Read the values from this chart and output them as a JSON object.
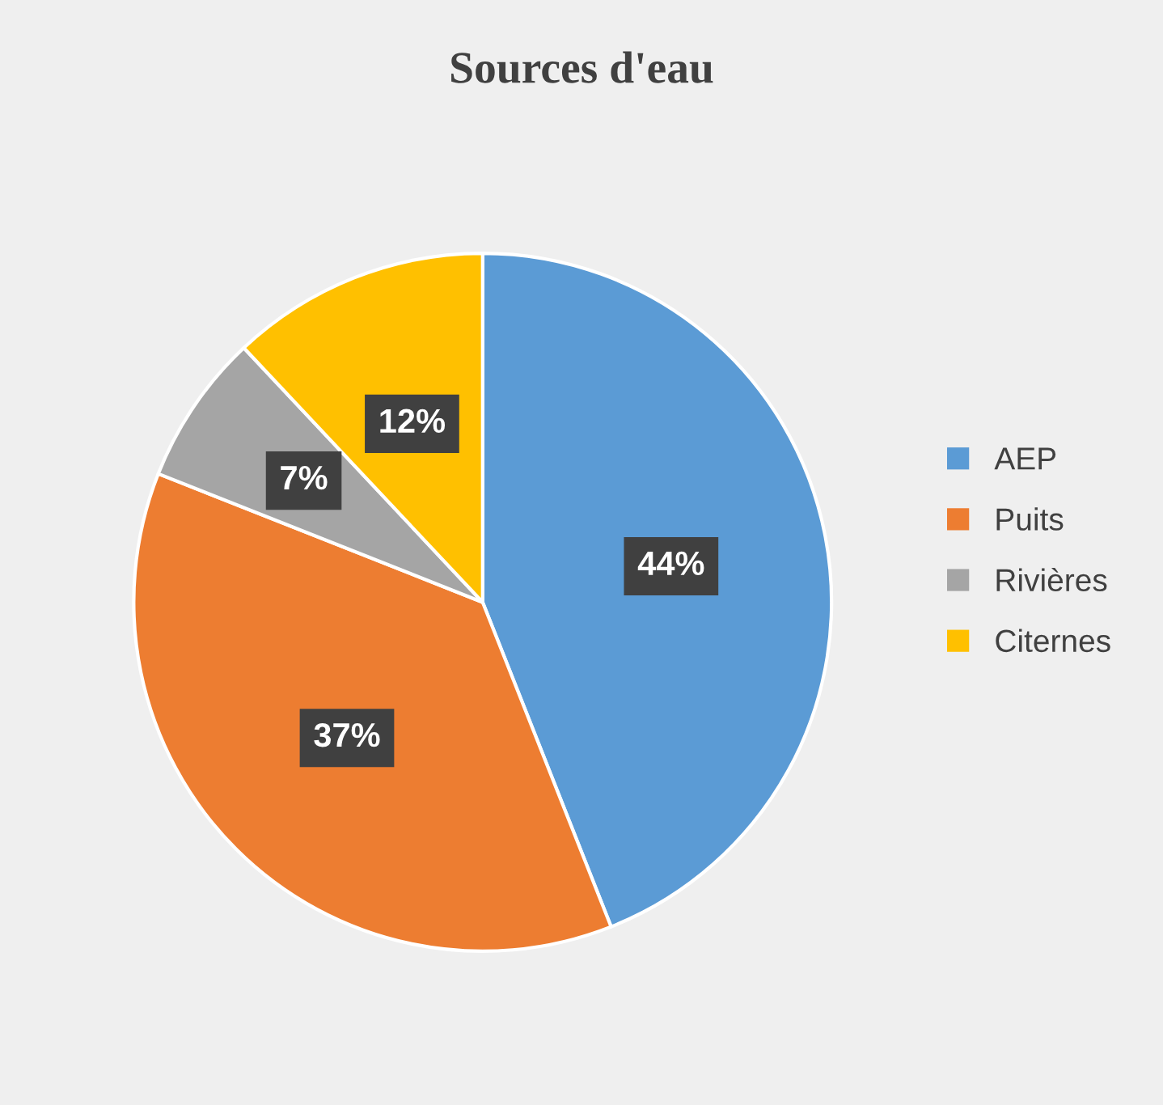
{
  "chart_data": {
    "type": "pie",
    "title": "Sources d'eau",
    "categories": [
      "AEP",
      "Puits",
      "Rivières",
      "Citernes"
    ],
    "values": [
      44,
      37,
      7,
      12
    ],
    "colors": [
      "#5b9bd5",
      "#ed7d31",
      "#a5a5a5",
      "#ffc000"
    ],
    "value_labels": [
      "44%",
      "37%",
      "7%",
      "12%"
    ],
    "legend": "right"
  }
}
